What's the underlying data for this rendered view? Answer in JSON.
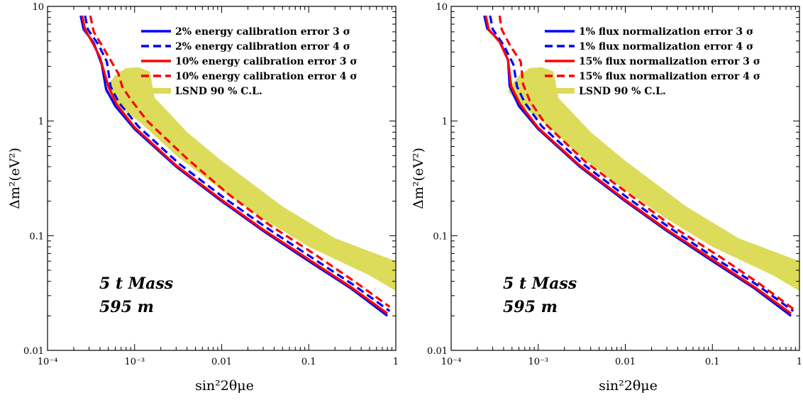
{
  "chart_data": [
    {
      "type": "line",
      "xscale": "log",
      "yscale": "log",
      "xlim": [
        0.0001,
        1
      ],
      "ylim": [
        0.01,
        10
      ],
      "xlabel": "sin²2θμe",
      "ylabel": "Δm²(eV²)",
      "x_ticks": [
        "10⁻⁴",
        "10⁻³",
        "0.01",
        "0.1",
        "1"
      ],
      "y_ticks": [
        "0.01",
        "0.1",
        "1",
        "10"
      ],
      "legend_position": "top-right",
      "annotation": [
        "5 t Mass",
        "595 m"
      ],
      "colors": {
        "blue": "#0000ff",
        "red": "#ff0000",
        "lsnd": "#dcdc5a"
      },
      "lsnd_region": {
        "name": "LSND 90 % C.L.",
        "upper": [
          [
            0.00048,
            2.0
          ],
          [
            0.0006,
            2.5
          ],
          [
            0.0008,
            2.9
          ],
          [
            0.0011,
            2.95
          ],
          [
            0.0015,
            2.7
          ],
          [
            0.0017,
            1.6
          ],
          [
            0.004,
            0.8
          ],
          [
            0.01,
            0.45
          ],
          [
            0.05,
            0.18
          ],
          [
            0.2,
            0.095
          ],
          [
            1,
            0.06
          ]
        ],
        "lower": [
          [
            1,
            0.033
          ],
          [
            0.5,
            0.045
          ],
          [
            0.1,
            0.08
          ],
          [
            0.03,
            0.14
          ],
          [
            0.01,
            0.25
          ],
          [
            0.003,
            0.5
          ],
          [
            0.0012,
            0.95
          ],
          [
            0.0007,
            1.3
          ],
          [
            0.00045,
            1.8
          ]
        ]
      },
      "series": [
        {
          "name": "2% energy calibration error 3 σ",
          "color": "blue",
          "dash": "solid",
          "points": [
            [
              0.00024,
              8.3
            ],
            [
              0.00026,
              6.3
            ],
            [
              0.00034,
              4.8
            ],
            [
              0.00042,
              3.1
            ],
            [
              0.00047,
              1.9
            ],
            [
              0.0006,
              1.35
            ],
            [
              0.001,
              0.85
            ],
            [
              0.003,
              0.4
            ],
            [
              0.01,
              0.2
            ],
            [
              0.03,
              0.11
            ],
            [
              0.1,
              0.06
            ],
            [
              0.3,
              0.035
            ],
            [
              0.8,
              0.02
            ]
          ]
        },
        {
          "name": "2% energy calibration error 4 σ",
          "color": "blue",
          "dash": "dashed",
          "points": [
            [
              0.00027,
              8.3
            ],
            [
              0.00029,
              6.3
            ],
            [
              0.00038,
              4.7
            ],
            [
              0.00048,
              3.3
            ],
            [
              0.00053,
              2.0
            ],
            [
              0.00066,
              1.45
            ],
            [
              0.0011,
              0.9
            ],
            [
              0.0033,
              0.42
            ],
            [
              0.011,
              0.21
            ],
            [
              0.033,
              0.117
            ],
            [
              0.11,
              0.064
            ],
            [
              0.33,
              0.037
            ],
            [
              0.85,
              0.022
            ]
          ]
        },
        {
          "name": "10% energy calibration error 3 σ",
          "color": "red",
          "dash": "solid",
          "points": [
            [
              0.00025,
              8.3
            ],
            [
              0.00027,
              6.3
            ],
            [
              0.00034,
              4.6
            ],
            [
              0.0004,
              3.6
            ],
            [
              0.0005,
              2.0
            ],
            [
              0.00062,
              1.4
            ],
            [
              0.001,
              0.88
            ],
            [
              0.003,
              0.41
            ],
            [
              0.01,
              0.205
            ],
            [
              0.03,
              0.113
            ],
            [
              0.1,
              0.062
            ],
            [
              0.3,
              0.036
            ],
            [
              0.8,
              0.021
            ]
          ]
        },
        {
          "name": "10% energy calibration error 4 σ",
          "color": "red",
          "dash": "dashed",
          "points": [
            [
              0.00031,
              8.3
            ],
            [
              0.00034,
              6.0
            ],
            [
              0.00045,
              4.2
            ],
            [
              0.00065,
              2.6
            ],
            [
              0.00072,
              2.0
            ],
            [
              0.0009,
              1.55
            ],
            [
              0.0014,
              1.0
            ],
            [
              0.004,
              0.47
            ],
            [
              0.012,
              0.23
            ],
            [
              0.035,
              0.125
            ],
            [
              0.12,
              0.068
            ],
            [
              0.35,
              0.039
            ],
            [
              0.85,
              0.024
            ]
          ]
        }
      ]
    },
    {
      "type": "line",
      "xscale": "log",
      "yscale": "log",
      "xlim": [
        0.0001,
        1
      ],
      "ylim": [
        0.01,
        10
      ],
      "xlabel": "sin²2θμe",
      "ylabel": "Δm²(eV²)",
      "x_ticks": [
        "10⁻⁴",
        "10⁻³",
        "0.01",
        "0.1",
        "1"
      ],
      "y_ticks": [
        "0.01",
        "0.1",
        "1",
        "10"
      ],
      "legend_position": "top-right",
      "annotation": [
        "5 t Mass",
        "595 m"
      ],
      "colors": {
        "blue": "#0000ff",
        "red": "#ff0000",
        "lsnd": "#dcdc5a"
      },
      "lsnd_region": {
        "name": "LSND 90 % C.L.",
        "upper": [
          [
            0.00048,
            2.0
          ],
          [
            0.0006,
            2.5
          ],
          [
            0.0008,
            2.9
          ],
          [
            0.0011,
            2.95
          ],
          [
            0.0015,
            2.7
          ],
          [
            0.0017,
            1.6
          ],
          [
            0.004,
            0.8
          ],
          [
            0.01,
            0.45
          ],
          [
            0.05,
            0.18
          ],
          [
            0.2,
            0.095
          ],
          [
            1,
            0.06
          ]
        ],
        "lower": [
          [
            1,
            0.033
          ],
          [
            0.5,
            0.045
          ],
          [
            0.1,
            0.08
          ],
          [
            0.03,
            0.14
          ],
          [
            0.01,
            0.25
          ],
          [
            0.003,
            0.5
          ],
          [
            0.0012,
            0.95
          ],
          [
            0.0007,
            1.3
          ],
          [
            0.00045,
            1.8
          ]
        ]
      },
      "series": [
        {
          "name": "1% flux normalization error 3 σ",
          "color": "blue",
          "dash": "solid",
          "points": [
            [
              0.00024,
              8.3
            ],
            [
              0.00026,
              6.4
            ],
            [
              0.00036,
              5.0
            ],
            [
              0.00045,
              3.4
            ],
            [
              0.00047,
              2.0
            ],
            [
              0.0006,
              1.35
            ],
            [
              0.001,
              0.85
            ],
            [
              0.003,
              0.4
            ],
            [
              0.01,
              0.2
            ],
            [
              0.03,
              0.11
            ],
            [
              0.1,
              0.06
            ],
            [
              0.3,
              0.035
            ],
            [
              0.8,
              0.02
            ]
          ]
        },
        {
          "name": "1% flux normalization error 4 σ",
          "color": "blue",
          "dash": "dashed",
          "points": [
            [
              0.00028,
              8.3
            ],
            [
              0.0003,
              6.3
            ],
            [
              0.0004,
              4.6
            ],
            [
              0.00052,
              3.1
            ],
            [
              0.00057,
              2.0
            ],
            [
              0.0007,
              1.45
            ],
            [
              0.0011,
              0.9
            ],
            [
              0.0033,
              0.42
            ],
            [
              0.011,
              0.21
            ],
            [
              0.033,
              0.116
            ],
            [
              0.11,
              0.063
            ],
            [
              0.33,
              0.037
            ],
            [
              0.85,
              0.022
            ]
          ]
        },
        {
          "name": "15% flux normalization error 3 σ",
          "color": "red",
          "dash": "solid",
          "points": [
            [
              0.00025,
              8.3
            ],
            [
              0.00027,
              6.3
            ],
            [
              0.00036,
              4.9
            ],
            [
              0.00045,
              3.4
            ],
            [
              0.00049,
              2.0
            ],
            [
              0.00062,
              1.4
            ],
            [
              0.001,
              0.87
            ],
            [
              0.003,
              0.41
            ],
            [
              0.01,
              0.205
            ],
            [
              0.03,
              0.113
            ],
            [
              0.1,
              0.062
            ],
            [
              0.3,
              0.036
            ],
            [
              0.8,
              0.021
            ]
          ]
        },
        {
          "name": "15% flux normalization error 4 σ",
          "color": "red",
          "dash": "dashed",
          "points": [
            [
              0.00036,
              8.3
            ],
            [
              0.00038,
              6.3
            ],
            [
              0.00048,
              4.5
            ],
            [
              0.00063,
              3.3
            ],
            [
              0.00067,
              2.1
            ],
            [
              0.0008,
              1.5
            ],
            [
              0.0012,
              0.95
            ],
            [
              0.0035,
              0.44
            ],
            [
              0.012,
              0.22
            ],
            [
              0.035,
              0.12
            ],
            [
              0.12,
              0.066
            ],
            [
              0.35,
              0.038
            ],
            [
              0.85,
              0.023
            ]
          ]
        }
      ]
    }
  ]
}
